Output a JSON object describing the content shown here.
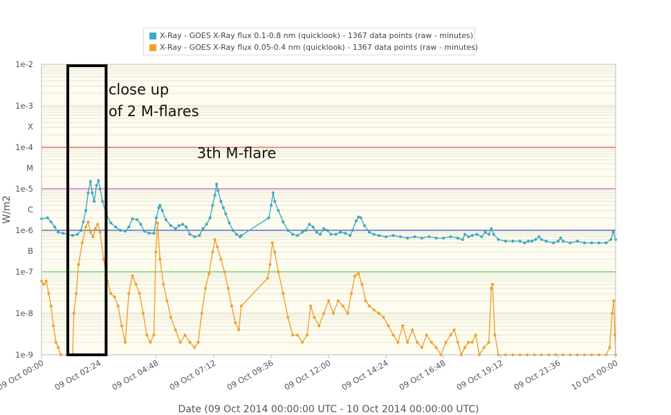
{
  "chart_data": {
    "type": "line",
    "xlabel": "Date (09 Oct 2014 00:00:00 UTC - 10 Oct 2014 00:00:00 UTC)",
    "ylabel": "W/m2",
    "yscale": "log",
    "ylim": [
      1e-09,
      0.01
    ],
    "y_tick_labels": [
      {
        "value": 0.01,
        "label": "1e-2"
      },
      {
        "value": 0.001,
        "label": "1e-3"
      },
      {
        "value": 0.000316,
        "label": "X"
      },
      {
        "value": 0.0001,
        "label": "1e-4"
      },
      {
        "value": 3.16e-05,
        "label": "M"
      },
      {
        "value": 1e-05,
        "label": "1e-5"
      },
      {
        "value": 3.16e-06,
        "label": "C"
      },
      {
        "value": 1e-06,
        "label": "1e-6"
      },
      {
        "value": 3.16e-07,
        "label": "B"
      },
      {
        "value": 1e-07,
        "label": "1e-7"
      },
      {
        "value": 1e-08,
        "label": "1e-8"
      },
      {
        "value": 1e-09,
        "label": "1e-9"
      }
    ],
    "xlim_hours": [
      0,
      24
    ],
    "x_tick_labels": [
      {
        "hour": 0,
        "label": "09 Oct 00:00"
      },
      {
        "hour": 2.4,
        "label": "09 Oct 02:24"
      },
      {
        "hour": 4.8,
        "label": "09 Oct 04:48"
      },
      {
        "hour": 7.2,
        "label": "09 Oct 07:12"
      },
      {
        "hour": 9.6,
        "label": "09 Oct 09:36"
      },
      {
        "hour": 12,
        "label": "09 Oct 12:00"
      },
      {
        "hour": 14.4,
        "label": "09 Oct 14:24"
      },
      {
        "hour": 16.8,
        "label": "09 Oct 16:48"
      },
      {
        "hour": 19.2,
        "label": "09 Oct 19:12"
      },
      {
        "hour": 21.6,
        "label": "09 Oct 21:36"
      },
      {
        "hour": 24,
        "label": "10 Oct 00:00"
      }
    ],
    "threshold_lines": [
      {
        "value": 0.0001,
        "color": "#e05050"
      },
      {
        "value": 1e-05,
        "color": "#d050d0"
      },
      {
        "value": 1e-06,
        "color": "#3050c0"
      },
      {
        "value": 1e-07,
        "color": "#50d050"
      }
    ],
    "grid": true,
    "legend_position": "top",
    "series": [
      {
        "name": "X-Ray - GOES X-Ray flux 0.1-0.8 nm (quicklook) - 1367 data points (raw - minutes)",
        "color": "#3fa9c0",
        "points": [
          [
            0.0,
            1.9e-06
          ],
          [
            0.25,
            2e-06
          ],
          [
            0.4,
            1.6e-06
          ],
          [
            0.55,
            1.2e-06
          ],
          [
            0.7,
            9e-07
          ],
          [
            0.9,
            8.5e-07
          ],
          [
            1.1,
            8e-07
          ],
          [
            1.3,
            7.5e-07
          ],
          [
            1.5,
            8e-07
          ],
          [
            1.65,
            1e-06
          ],
          [
            1.75,
            1.6e-06
          ],
          [
            1.85,
            3e-06
          ],
          [
            1.95,
            8e-06
          ],
          [
            2.05,
            1.5e-05
          ],
          [
            2.12,
            8e-06
          ],
          [
            2.2,
            5e-06
          ],
          [
            2.3,
            1.2e-05
          ],
          [
            2.38,
            1.6e-05
          ],
          [
            2.45,
            1e-05
          ],
          [
            2.55,
            5e-06
          ],
          [
            2.7,
            2.5e-06
          ],
          [
            2.9,
            1.5e-06
          ],
          [
            3.1,
            1.2e-06
          ],
          [
            3.3,
            1e-06
          ],
          [
            3.5,
            9.5e-07
          ],
          [
            3.65,
            1.2e-06
          ],
          [
            3.8,
            1.9e-06
          ],
          [
            4.0,
            1.8e-06
          ],
          [
            4.15,
            1.4e-06
          ],
          [
            4.3,
            9.5e-07
          ],
          [
            4.5,
            8.5e-07
          ],
          [
            4.7,
            8.5e-07
          ],
          [
            4.8,
            2e-06
          ],
          [
            4.9,
            3.5e-06
          ],
          [
            4.95,
            4e-06
          ],
          [
            5.05,
            3e-06
          ],
          [
            5.2,
            1.8e-06
          ],
          [
            5.4,
            1.3e-06
          ],
          [
            5.6,
            1.1e-06
          ],
          [
            5.75,
            1.3e-06
          ],
          [
            5.9,
            1.4e-06
          ],
          [
            6.05,
            1.2e-06
          ],
          [
            6.2,
            8e-07
          ],
          [
            6.4,
            7e-07
          ],
          [
            6.6,
            7.5e-07
          ],
          [
            6.75,
            1.1e-06
          ],
          [
            6.9,
            1.4e-06
          ],
          [
            7.05,
            2e-06
          ],
          [
            7.15,
            4e-06
          ],
          [
            7.25,
            7e-06
          ],
          [
            7.32,
            1.3e-05
          ],
          [
            7.38,
            9e-06
          ],
          [
            7.5,
            5e-06
          ],
          [
            7.6,
            3.5e-06
          ],
          [
            7.7,
            2.5e-06
          ],
          [
            7.85,
            1.5e-06
          ],
          [
            8.0,
            1e-06
          ],
          [
            8.15,
            8e-07
          ],
          [
            8.3,
            7e-07
          ],
          [
            8.35,
            7.5e-07
          ],
          [
            9.5,
            2e-06
          ],
          [
            9.6,
            4e-06
          ],
          [
            9.68,
            8e-06
          ],
          [
            9.75,
            5e-06
          ],
          [
            9.9,
            3e-06
          ],
          [
            10.1,
            1.6e-06
          ],
          [
            10.3,
            1e-06
          ],
          [
            10.5,
            8e-07
          ],
          [
            10.7,
            7.5e-07
          ],
          [
            10.9,
            9e-07
          ],
          [
            11.05,
            1e-06
          ],
          [
            11.2,
            1.4e-06
          ],
          [
            11.35,
            1.2e-06
          ],
          [
            11.5,
            9e-07
          ],
          [
            11.65,
            8e-07
          ],
          [
            11.8,
            1.1e-06
          ],
          [
            11.95,
            1e-06
          ],
          [
            12.1,
            8e-07
          ],
          [
            12.3,
            8e-07
          ],
          [
            12.5,
            9e-07
          ],
          [
            12.7,
            8.5e-07
          ],
          [
            12.9,
            7.5e-07
          ],
          [
            13.0,
            1e-06
          ],
          [
            13.15,
            1.7e-06
          ],
          [
            13.25,
            2.1e-06
          ],
          [
            13.35,
            2e-06
          ],
          [
            13.5,
            1.3e-06
          ],
          [
            13.7,
            9e-07
          ],
          [
            13.9,
            8e-07
          ],
          [
            14.1,
            7.5e-07
          ],
          [
            14.4,
            7e-07
          ],
          [
            14.7,
            7.5e-07
          ],
          [
            15.0,
            7e-07
          ],
          [
            15.3,
            6.5e-07
          ],
          [
            15.6,
            7e-07
          ],
          [
            15.9,
            6.5e-07
          ],
          [
            16.2,
            7e-07
          ],
          [
            16.5,
            6.5e-07
          ],
          [
            16.8,
            6.5e-07
          ],
          [
            17.1,
            7e-07
          ],
          [
            17.4,
            6.5e-07
          ],
          [
            17.6,
            6e-07
          ],
          [
            17.7,
            8e-07
          ],
          [
            17.85,
            7e-07
          ],
          [
            18.0,
            7.5e-07
          ],
          [
            18.2,
            8e-07
          ],
          [
            18.4,
            7e-07
          ],
          [
            18.55,
            9e-07
          ],
          [
            18.7,
            8e-07
          ],
          [
            18.8,
            1.1e-06
          ],
          [
            18.9,
            8e-07
          ],
          [
            19.1,
            6e-07
          ],
          [
            19.4,
            5.5e-07
          ],
          [
            19.7,
            5.5e-07
          ],
          [
            20.0,
            5.5e-07
          ],
          [
            20.2,
            5e-07
          ],
          [
            20.35,
            5.5e-07
          ],
          [
            20.5,
            5.5e-07
          ],
          [
            20.65,
            6e-07
          ],
          [
            20.8,
            7e-07
          ],
          [
            20.9,
            6e-07
          ],
          [
            21.1,
            5.5e-07
          ],
          [
            21.4,
            5e-07
          ],
          [
            21.6,
            5.5e-07
          ],
          [
            21.7,
            6.5e-07
          ],
          [
            21.8,
            5.5e-07
          ],
          [
            22.1,
            5e-07
          ],
          [
            22.4,
            5.5e-07
          ],
          [
            22.7,
            5e-07
          ],
          [
            23.0,
            5e-07
          ],
          [
            23.3,
            5e-07
          ],
          [
            23.6,
            5e-07
          ],
          [
            23.8,
            6e-07
          ],
          [
            23.9,
            9e-07
          ],
          [
            24.0,
            6e-07
          ]
        ]
      },
      {
        "name": "X-Ray - GOES X-Ray flux 0.05-0.4 nm (quicklook) - 1367 data points (raw - minutes)",
        "color": "#f0a030",
        "points": [
          [
            0.0,
            6e-08
          ],
          [
            0.1,
            5e-08
          ],
          [
            0.2,
            6e-08
          ],
          [
            0.3,
            3e-08
          ],
          [
            0.4,
            1.5e-08
          ],
          [
            0.5,
            5e-09
          ],
          [
            0.6,
            2e-09
          ],
          [
            0.7,
            1.5e-09
          ],
          [
            0.8,
            1e-09
          ],
          [
            1.3,
            1e-09
          ],
          [
            1.35,
            1e-08
          ],
          [
            1.45,
            3e-08
          ],
          [
            1.55,
            1.5e-07
          ],
          [
            1.7,
            5e-07
          ],
          [
            1.85,
            1.2e-06
          ],
          [
            1.95,
            1.6e-06
          ],
          [
            2.05,
            9e-07
          ],
          [
            2.15,
            7e-07
          ],
          [
            2.25,
            1.1e-06
          ],
          [
            2.35,
            1.4e-06
          ],
          [
            2.45,
            9e-07
          ],
          [
            2.6,
            2e-07
          ],
          [
            2.75,
            6e-08
          ],
          [
            2.9,
            3e-08
          ],
          [
            3.05,
            2.5e-08
          ],
          [
            3.2,
            1.5e-08
          ],
          [
            3.35,
            5e-09
          ],
          [
            3.5,
            2e-09
          ],
          [
            3.65,
            3e-08
          ],
          [
            3.8,
            8e-08
          ],
          [
            3.95,
            5e-08
          ],
          [
            4.1,
            3e-08
          ],
          [
            4.25,
            1e-08
          ],
          [
            4.4,
            3e-09
          ],
          [
            4.55,
            2e-09
          ],
          [
            4.7,
            3e-09
          ],
          [
            4.78,
            3e-07
          ],
          [
            4.85,
            1.5e-06
          ],
          [
            4.95,
            2e-07
          ],
          [
            5.1,
            5e-08
          ],
          [
            5.25,
            2e-08
          ],
          [
            5.4,
            8e-09
          ],
          [
            5.6,
            4e-09
          ],
          [
            5.8,
            2e-09
          ],
          [
            6.0,
            3e-09
          ],
          [
            6.2,
            2e-09
          ],
          [
            6.4,
            1.5e-09
          ],
          [
            6.55,
            2e-09
          ],
          [
            6.7,
            1e-08
          ],
          [
            6.85,
            4e-08
          ],
          [
            7.0,
            9e-08
          ],
          [
            7.15,
            3e-07
          ],
          [
            7.25,
            6e-07
          ],
          [
            7.35,
            4e-07
          ],
          [
            7.5,
            2e-07
          ],
          [
            7.65,
            1e-07
          ],
          [
            7.8,
            4e-08
          ],
          [
            7.95,
            1.5e-08
          ],
          [
            8.1,
            6e-09
          ],
          [
            8.25,
            4e-09
          ],
          [
            8.35,
            1.5e-08
          ],
          [
            9.45,
            7e-08
          ],
          [
            9.55,
            1.5e-07
          ],
          [
            9.65,
            5e-07
          ],
          [
            9.75,
            3e-07
          ],
          [
            9.9,
            1e-07
          ],
          [
            10.1,
            3e-08
          ],
          [
            10.3,
            8e-09
          ],
          [
            10.5,
            3e-09
          ],
          [
            10.7,
            3e-09
          ],
          [
            10.9,
            2e-09
          ],
          [
            11.1,
            3e-09
          ],
          [
            11.25,
            1.5e-08
          ],
          [
            11.4,
            8e-09
          ],
          [
            11.6,
            5e-09
          ],
          [
            11.8,
            1e-08
          ],
          [
            12.0,
            2e-08
          ],
          [
            12.2,
            1e-08
          ],
          [
            12.4,
            2e-08
          ],
          [
            12.6,
            1.5e-08
          ],
          [
            12.8,
            1e-08
          ],
          [
            12.95,
            3e-08
          ],
          [
            13.1,
            8e-08
          ],
          [
            13.25,
            9e-08
          ],
          [
            13.4,
            5e-08
          ],
          [
            13.55,
            2e-08
          ],
          [
            13.7,
            1.5e-08
          ],
          [
            13.9,
            1.2e-08
          ],
          [
            14.1,
            1e-08
          ],
          [
            14.3,
            8e-09
          ],
          [
            14.5,
            5e-09
          ],
          [
            14.7,
            3e-09
          ],
          [
            14.9,
            2e-09
          ],
          [
            15.1,
            5e-09
          ],
          [
            15.3,
            2e-09
          ],
          [
            15.5,
            4e-09
          ],
          [
            15.7,
            2e-09
          ],
          [
            15.9,
            1.5e-09
          ],
          [
            16.1,
            3e-09
          ],
          [
            16.3,
            2e-09
          ],
          [
            16.5,
            1.5e-09
          ],
          [
            16.7,
            1e-09
          ],
          [
            16.9,
            2e-09
          ],
          [
            17.1,
            3e-09
          ],
          [
            17.25,
            4e-09
          ],
          [
            17.4,
            2e-09
          ],
          [
            17.55,
            1e-09
          ],
          [
            17.7,
            1.5e-09
          ],
          [
            17.85,
            2e-09
          ],
          [
            18.0,
            2e-09
          ],
          [
            18.15,
            3e-09
          ],
          [
            18.3,
            1e-09
          ],
          [
            18.5,
            1.5e-09
          ],
          [
            18.7,
            2e-09
          ],
          [
            18.8,
            4e-08
          ],
          [
            18.85,
            5e-08
          ],
          [
            18.95,
            3e-09
          ],
          [
            19.1,
            1e-09
          ],
          [
            19.4,
            1e-09
          ],
          [
            19.7,
            1e-09
          ],
          [
            20.0,
            1e-09
          ],
          [
            20.3,
            1e-09
          ],
          [
            20.6,
            1e-09
          ],
          [
            20.9,
            1e-09
          ],
          [
            21.2,
            1e-09
          ],
          [
            21.5,
            1e-09
          ],
          [
            21.8,
            1e-09
          ],
          [
            22.1,
            1e-09
          ],
          [
            22.4,
            1e-09
          ],
          [
            22.7,
            1e-09
          ],
          [
            23.0,
            1e-09
          ],
          [
            23.3,
            1e-09
          ],
          [
            23.6,
            1e-09
          ],
          [
            23.75,
            1.5e-09
          ],
          [
            23.85,
            1e-08
          ],
          [
            23.92,
            2e-08
          ],
          [
            23.97,
            3e-09
          ],
          [
            24.0,
            1e-09
          ]
        ]
      }
    ],
    "annotations": [
      {
        "text": "close up",
        "hour": 2.8,
        "value": 0.0019
      },
      {
        "text": "of 2 M-flares",
        "hour": 2.8,
        "value": 0.00056
      },
      {
        "text": "3th M-flare",
        "hour": 6.5,
        "value": 5.5e-05
      }
    ],
    "highlight_box": {
      "hour_from": 1.1,
      "hour_to": 2.7,
      "value_from": 1e-09,
      "value_to": 0.01
    }
  }
}
